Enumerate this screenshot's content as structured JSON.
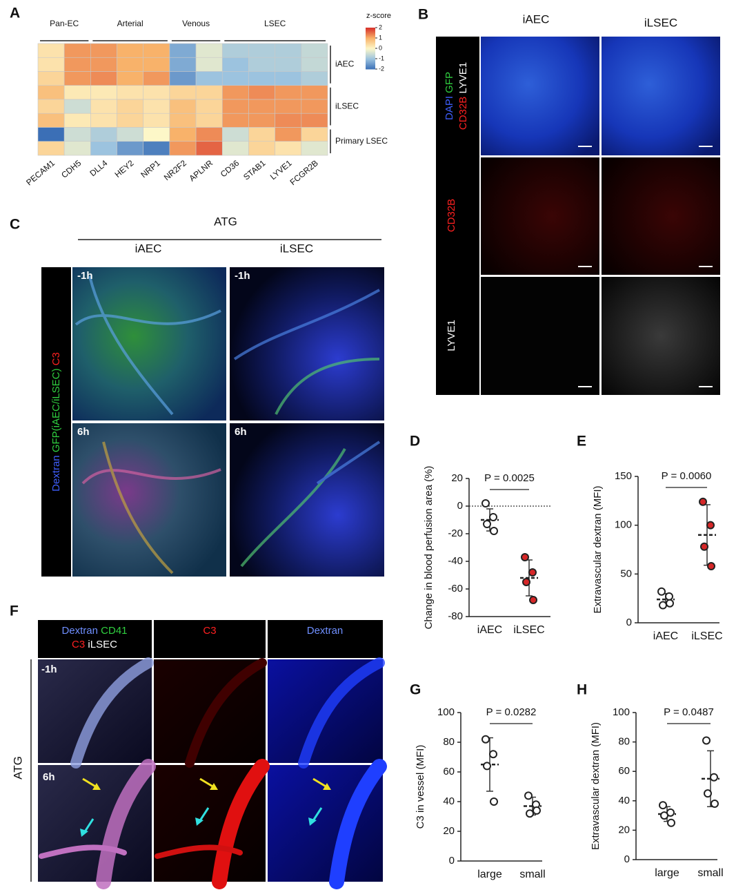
{
  "panel_labels": [
    "A",
    "B",
    "C",
    "D",
    "E",
    "F",
    "G",
    "H"
  ],
  "chart_data": [
    {
      "type": "heatmap",
      "column_groups": [
        "Pan-EC",
        "Arterial",
        "Venous",
        "LSEC"
      ],
      "columns": [
        "PECAM1",
        "CDH5",
        "DLL4",
        "HEY2",
        "NRP1",
        "NR2F2",
        "APLNR",
        "CD36",
        "STAB1",
        "LYVE1",
        "FCGR2B"
      ],
      "row_groups": [
        "iAEC",
        "iLSEC",
        "Primary LSEC"
      ],
      "values": [
        [
          0.3,
          1.2,
          1.2,
          1.0,
          1.0,
          -1.3,
          -0.3,
          -0.8,
          -0.8,
          -0.8,
          -0.6
        ],
        [
          0.3,
          1.2,
          1.2,
          1.0,
          1.0,
          -1.3,
          -0.3,
          -1.0,
          -0.8,
          -0.8,
          -0.6
        ],
        [
          0.5,
          1.2,
          1.3,
          1.0,
          1.2,
          -1.5,
          -1.0,
          -1.0,
          -1.0,
          -1.0,
          -0.8
        ],
        [
          0.8,
          0.2,
          0.2,
          0.3,
          0.3,
          0.5,
          0.5,
          1.2,
          1.3,
          1.2,
          1.2
        ],
        [
          0.5,
          -0.5,
          0.3,
          0.5,
          0.3,
          0.8,
          0.5,
          1.2,
          1.2,
          1.2,
          1.2
        ],
        [
          0.8,
          0.2,
          0.3,
          0.5,
          0.3,
          0.8,
          0.5,
          1.2,
          1.2,
          1.3,
          1.3
        ],
        [
          -2.0,
          -0.5,
          -0.8,
          -0.5,
          0.0,
          1.0,
          1.3,
          -0.5,
          0.5,
          1.2,
          0.5
        ],
        [
          0.5,
          -0.3,
          -1.0,
          -1.5,
          -1.8,
          1.2,
          1.6,
          -0.3,
          0.5,
          0.3,
          -0.3
        ]
      ],
      "colorbar_title": "z-score",
      "zlim": [
        -2,
        2
      ],
      "zticks": [
        2,
        1,
        0,
        -1,
        -2
      ]
    },
    {
      "type": "dot",
      "ylabel": "Change in blood perfusion area (%)",
      "annotation": "P = 0.0025",
      "categories": [
        "iAEC",
        "iLSEC"
      ],
      "colors": [
        "#ffffff",
        "#d62728"
      ],
      "points": [
        [
          2,
          -8,
          -13,
          -18
        ],
        [
          -37,
          -48,
          -55,
          -68
        ]
      ],
      "means": [
        -10,
        -52
      ],
      "sds": [
        8,
        13
      ],
      "ylim": [
        -80,
        20
      ],
      "yticks": [
        -80,
        -60,
        -40,
        -20,
        0,
        20
      ],
      "zero_line": true
    },
    {
      "type": "dot",
      "ylabel": "Extravascular dextran (MFI)",
      "annotation": "P = 0.0060",
      "categories": [
        "iAEC",
        "iLSEC"
      ],
      "colors": [
        "#ffffff",
        "#d62728"
      ],
      "points": [
        [
          32,
          27,
          18,
          20
        ],
        [
          124,
          100,
          78,
          58
        ]
      ],
      "means": [
        24,
        90
      ],
      "sds": [
        6,
        31
      ],
      "ylim": [
        0,
        150
      ],
      "yticks": [
        0,
        50,
        100,
        150
      ]
    },
    {
      "type": "dot",
      "ylabel": "C3 in vessel (MFI)",
      "annotation": "P = 0.0282",
      "categories": [
        "large",
        "small"
      ],
      "colors": [
        "#ffffff",
        "#ffffff"
      ],
      "points": [
        [
          82,
          72,
          64,
          40
        ],
        [
          44,
          38,
          32,
          34
        ]
      ],
      "means": [
        65,
        37
      ],
      "sds": [
        18,
        6
      ],
      "ylim": [
        0,
        100
      ],
      "yticks": [
        0,
        20,
        40,
        60,
        80,
        100
      ]
    },
    {
      "type": "dot",
      "ylabel": "Extravascular dextran (MFI)",
      "annotation": "P = 0.0487",
      "categories": [
        "large",
        "small"
      ],
      "colors": [
        "#ffffff",
        "#ffffff"
      ],
      "points": [
        [
          37,
          32,
          30,
          25
        ],
        [
          81,
          56,
          45,
          38
        ]
      ],
      "means": [
        31,
        55
      ],
      "sds": [
        5,
        19
      ],
      "ylim": [
        0,
        100
      ],
      "yticks": [
        0,
        20,
        40,
        60,
        80,
        100
      ]
    }
  ],
  "panel_B": {
    "columns": [
      "iAEC",
      "iLSEC"
    ],
    "row_labels": [
      [
        "DAPI",
        "GFP",
        "CD32B",
        "LYVE1"
      ],
      [
        "CD32B"
      ],
      [
        "LYVE1"
      ]
    ]
  },
  "panel_C": {
    "title": "ATG",
    "columns": [
      "iAEC",
      "iLSEC"
    ],
    "stain_labels": [
      "Dextran",
      "GFP(iAEC/iLSEC)",
      "C3"
    ],
    "timepoints": [
      "-1h",
      "6h"
    ]
  },
  "panel_F": {
    "columns": [
      [
        "Dextran",
        "CD41",
        "C3",
        "iLSEC"
      ],
      [
        "C3"
      ],
      [
        "Dextran"
      ]
    ],
    "row_group": "ATG",
    "timepoints": [
      "-1h",
      "6h"
    ]
  }
}
